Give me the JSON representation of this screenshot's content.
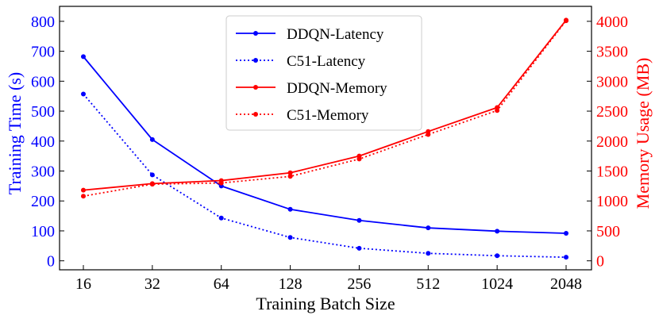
{
  "chart_data": {
    "type": "line",
    "title": "",
    "xlabel": "Training Batch Size",
    "ylabel_left": "Training Time (s)",
    "ylabel_right": "Memory Usage (MB)",
    "categories": [
      "16",
      "32",
      "64",
      "128",
      "256",
      "512",
      "1024",
      "2048"
    ],
    "ylim_left": [
      -30,
      850
    ],
    "yticks_left": [
      0,
      100,
      200,
      300,
      400,
      500,
      600,
      700,
      800
    ],
    "ylim_right": [
      -150,
      4250
    ],
    "yticks_right": [
      0,
      500,
      1000,
      1500,
      2000,
      2500,
      3000,
      3500,
      4000
    ],
    "left_axis_color": "#0000ff",
    "right_axis_color": "#ff0000",
    "legend_position": "top-center",
    "series": [
      {
        "name": "DDQN-Latency",
        "axis": "left",
        "color": "#0000ff",
        "style": "solid",
        "values": [
          682,
          405,
          250,
          172,
          135,
          110,
          99,
          92
        ]
      },
      {
        "name": "C51-Latency",
        "axis": "left",
        "color": "#0000ff",
        "style": "dotted",
        "values": [
          557,
          287,
          143,
          78,
          42,
          25,
          17,
          12
        ]
      },
      {
        "name": "DDQN-Memory",
        "axis": "right",
        "color": "#ff0000",
        "style": "solid",
        "values": [
          1180,
          1290,
          1340,
          1470,
          1750,
          2160,
          2560,
          4020
        ]
      },
      {
        "name": "C51-Memory",
        "axis": "right",
        "color": "#ff0000",
        "style": "dotted",
        "values": [
          1080,
          1280,
          1300,
          1410,
          1700,
          2110,
          2510,
          4010
        ]
      }
    ]
  }
}
